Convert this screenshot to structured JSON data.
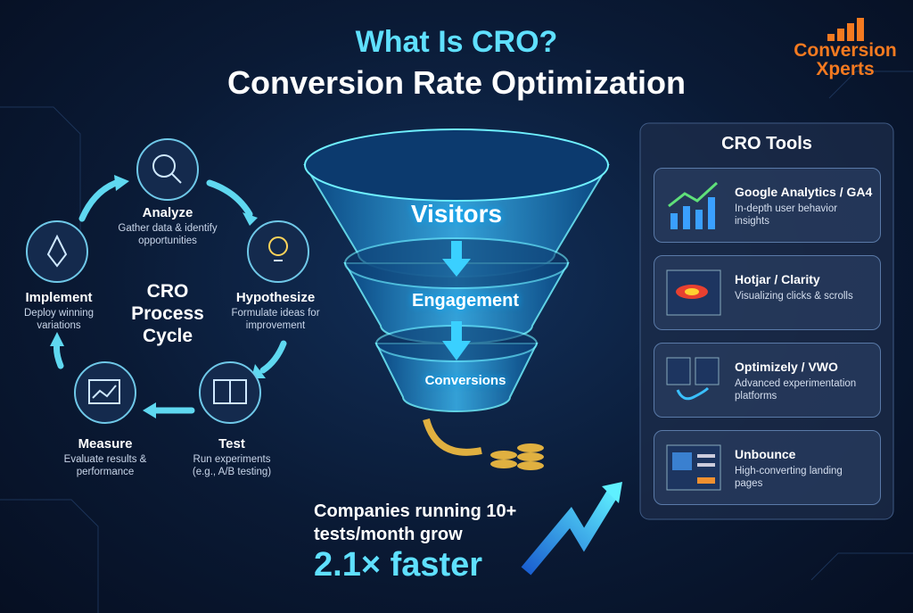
{
  "header": {
    "title": "What Is CRO?",
    "subtitle": "Conversion Rate Optimization"
  },
  "logo": {
    "line1": "Conversion",
    "line2": "Xperts"
  },
  "cycle": {
    "center": "CRO Process Cycle",
    "steps": [
      {
        "title": "Analyze",
        "description": "Gather data & identify opportunities"
      },
      {
        "title": "Hypothesize",
        "description": "Formulate ideas for improvement"
      },
      {
        "title": "Test",
        "description": "Run experiments (e.g., A/B testing)"
      },
      {
        "title": "Measure",
        "description": "Evaluate results & performance"
      },
      {
        "title": "Implement",
        "description": "Deploy winning variations"
      }
    ]
  },
  "funnel": {
    "stages": [
      "Visitors",
      "Engagement",
      "Conversions"
    ]
  },
  "tools": {
    "title": "CRO Tools",
    "items": [
      {
        "name": "Google Analytics / GA4",
        "description": "In-depth user behavior insights"
      },
      {
        "name": "Hotjar / Clarity",
        "description": "Visualizing clicks & scrolls"
      },
      {
        "name": "Optimizely / VWO",
        "description": "Advanced experimentation platforms"
      },
      {
        "name": "Unbounce",
        "description": "High-converting landing pages"
      }
    ]
  },
  "stat": {
    "text": "Companies running 10+ tests/month grow",
    "highlight": "2.1× faster"
  }
}
